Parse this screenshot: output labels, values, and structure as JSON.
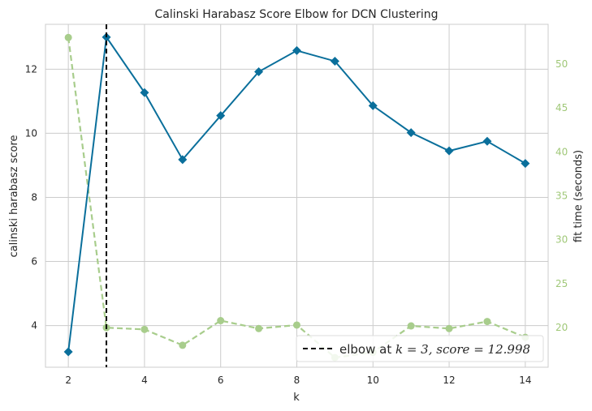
{
  "chart_data": {
    "type": "line",
    "title": "Calinski Harabasz Score Elbow for DCN Clustering",
    "xlabel": "k",
    "ylabel": "calinski harabasz score",
    "y2label": "fit time (seconds)",
    "x": [
      2,
      3,
      4,
      5,
      6,
      7,
      8,
      9,
      10,
      11,
      12,
      13,
      14
    ],
    "xlim": [
      1.4,
      14.6
    ],
    "ylim": [
      2.7,
      13.4
    ],
    "y2lim": [
      15.5,
      54.5
    ],
    "xticks": [
      2,
      4,
      6,
      8,
      10,
      12,
      14
    ],
    "yticks": [
      4,
      6,
      8,
      10,
      12
    ],
    "y2ticks": [
      20,
      25,
      30,
      35,
      40,
      45,
      50
    ],
    "grid": true,
    "legend_position": "bottom-right",
    "series": [
      {
        "axis": "left",
        "color": "#0a6f9b",
        "marker": "diamond",
        "linestyle": "solid",
        "values": [
          3.18,
          13.0,
          11.27,
          9.18,
          10.55,
          11.92,
          12.58,
          12.25,
          10.86,
          10.02,
          9.45,
          9.75,
          9.06
        ]
      },
      {
        "axis": "right",
        "color": "#a8cd8c",
        "marker": "circle",
        "linestyle": "dashed",
        "values": [
          53.0,
          20.0,
          19.8,
          18.0,
          20.8,
          19.9,
          20.3,
          16.6,
          17.2,
          20.2,
          19.9,
          20.7,
          18.9
        ]
      }
    ],
    "elbow": {
      "k": 3,
      "legend_prefix": "elbow at ",
      "legend_math": "k = 3, score = 12.998",
      "color": "#000000"
    }
  },
  "colors": {
    "grid": "#cccccc",
    "axis_spine": "#cccccc",
    "right_axis_text": "#a0c878"
  }
}
